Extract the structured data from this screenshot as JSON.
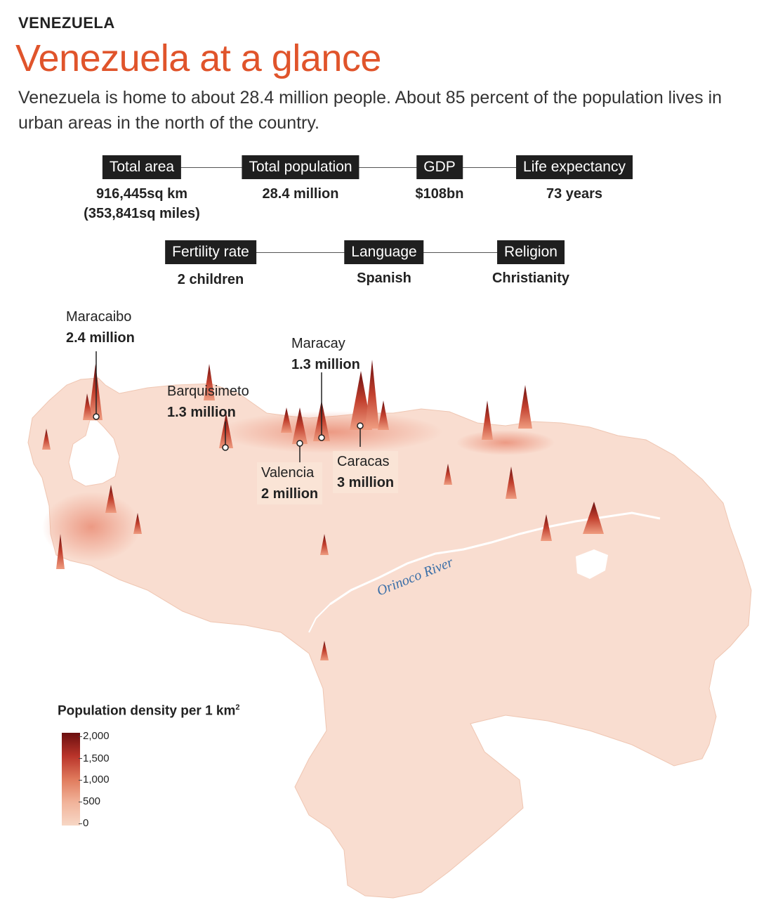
{
  "header": {
    "kicker": "VENEZUELA",
    "title": "Venezuela at a glance",
    "subtitle": "Venezuela is home to about 28.4 million people. About 85 percent of the population lives in urban areas in the north of the country."
  },
  "stats_row1": [
    {
      "label": "Total area",
      "value": "916,445sq km",
      "value2": "(353,841sq miles)"
    },
    {
      "label": "Total population",
      "value": "28.4 million"
    },
    {
      "label": "GDP",
      "value": "$108bn"
    },
    {
      "label": "Life expectancy",
      "value": "73 years"
    }
  ],
  "stats_row2": [
    {
      "label": "Fertility rate",
      "value": "2 children"
    },
    {
      "label": "Language",
      "value": "Spanish"
    },
    {
      "label": "Religion",
      "value": "Christianity"
    }
  ],
  "cities": [
    {
      "name": "Maracaibo",
      "population": "2.4 million"
    },
    {
      "name": "Barquisimeto",
      "population": "1.3 million"
    },
    {
      "name": "Maracay",
      "population": "1.3 million"
    },
    {
      "name": "Valencia",
      "population": "2 million"
    },
    {
      "name": "Caracas",
      "population": "3 million"
    }
  ],
  "river_label": "Orinoco River",
  "legend": {
    "title": "Population density per 1 km",
    "title_sup": "2",
    "ticks": [
      "2,000",
      "1,500",
      "1,000",
      "500",
      "0"
    ]
  },
  "colors": {
    "title": "#e0542b",
    "land": "#f9ddd0",
    "density_high": "#6b0f0f",
    "density_low": "#f7d7c5",
    "river": "#ffffff",
    "river_label": "#3b6fa8",
    "label_box": "#1f1f1f"
  }
}
